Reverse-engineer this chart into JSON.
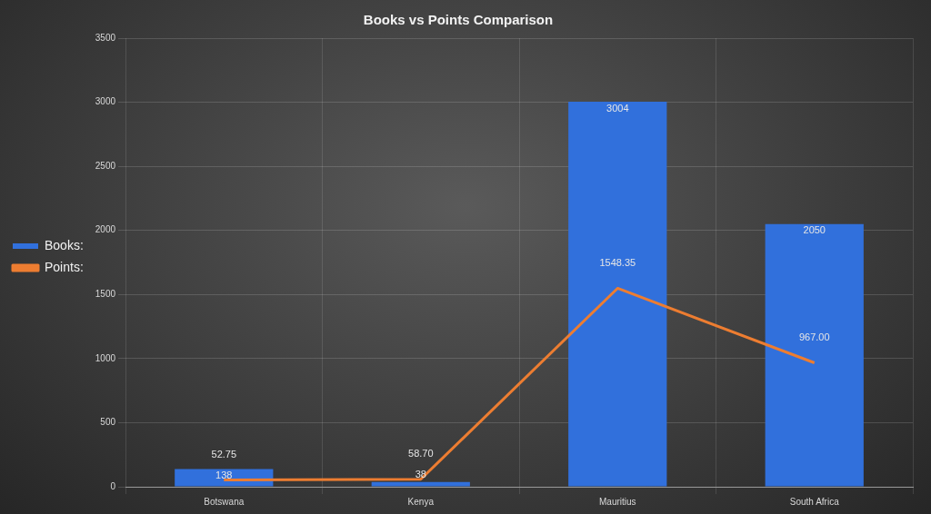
{
  "chart_data": {
    "type": "bar",
    "title": "Books vs Points Comparison",
    "categories": [
      "Botswana",
      "Kenya",
      "Mauritius",
      "South Africa"
    ],
    "series": [
      {
        "name": "Books:",
        "color": "#3170dc",
        "values": [
          138,
          38,
          3004,
          2050
        ],
        "value_labels": [
          "138",
          "38",
          "3004",
          "2050"
        ]
      },
      {
        "name": "Points:",
        "type": "line",
        "color": "#ed7d31",
        "values": [
          52.75,
          58.7,
          1548.35,
          967
        ],
        "value_labels": [
          "52.75",
          "58.70",
          "1548.35",
          "967.00"
        ]
      }
    ],
    "ylim": [
      0,
      3500
    ],
    "yticks": [
      0,
      500,
      1000,
      1500,
      2000,
      2500,
      3000,
      3500
    ],
    "grid": true,
    "legend": "left",
    "marker": "none"
  }
}
